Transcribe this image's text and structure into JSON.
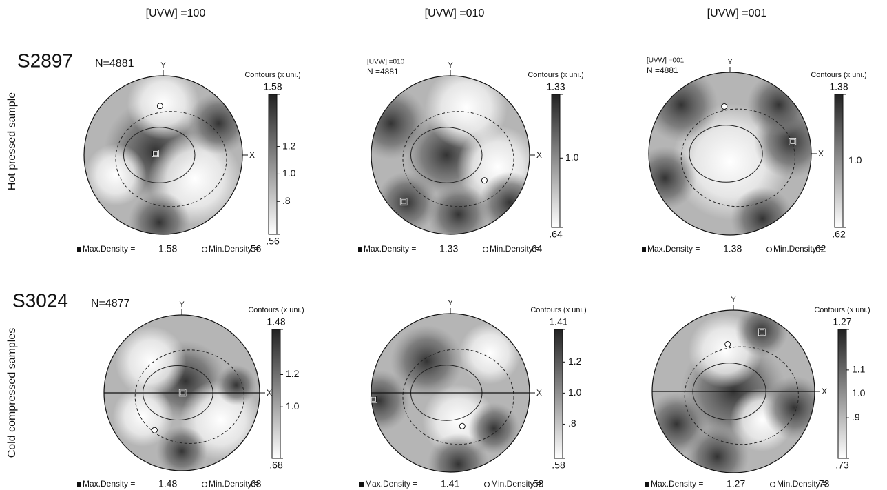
{
  "columns": [
    "[UVW] =100",
    "[UVW] =010",
    "[UVW] =001"
  ],
  "rows": [
    {
      "side_label": "Hot pressed sample",
      "sample": "S2897",
      "n_label": "N=4881",
      "panels": [
        {
          "axis_y": "Y",
          "axis_x": "X",
          "contour_title": "Contours (x uni.)",
          "clim": [
            0.56,
            1.58
          ],
          "ticks": [
            {
              "value": 1.58,
              "label": "1.58"
            },
            1.2,
            {
              "value": 1,
              "label": "1.0"
            },
            {
              "value": 0.8,
              "label": ".8"
            },
            {
              "value": 0.56,
              "label": ".56"
            }
          ],
          "max_label": "Max.Density =",
          "max_density": 1.58,
          "min_label": "Min.Density =",
          "min_density": {
            "value": 0.56,
            "label": ".56"
          }
        },
        {
          "inset": [
            "[UVW] =010",
            "N =4881"
          ],
          "axis_y": "Y",
          "axis_x": "X",
          "contour_title": "Contours (x uni.)",
          "clim": [
            0.64,
            1.33
          ],
          "ticks": [
            {
              "value": 1.33,
              "label": "1.33"
            },
            {
              "value": 1,
              "label": "1.0"
            },
            {
              "value": 0.64,
              "label": ".64"
            }
          ],
          "max_label": "Max.Density =",
          "max_density": 1.33,
          "min_label": "Min.Density =",
          "min_density": {
            "value": 0.64,
            "label": ".64"
          }
        },
        {
          "inset": [
            "[UVW] =001",
            "N =4881"
          ],
          "axis_y": "Y",
          "axis_x": "X",
          "contour_title": "Contours (x uni.)",
          "clim": [
            0.62,
            1.38
          ],
          "ticks": [
            {
              "value": 1.38,
              "label": "1.38"
            },
            {
              "value": 1,
              "label": "1.0"
            },
            {
              "value": 0.62,
              "label": ".62"
            }
          ],
          "max_label": "Max.Density =",
          "max_density": 1.38,
          "min_label": "Min.Density =",
          "min_density": {
            "value": 0.62,
            "label": ".62"
          }
        }
      ]
    },
    {
      "side_label": "Cold compressed samples",
      "sample": "S3024",
      "n_label": "N=4877",
      "panels": [
        {
          "axis_y": "Y",
          "axis_x": "X",
          "contour_title": "Contours (x uni.)",
          "clim": [
            0.68,
            1.48
          ],
          "ticks": [
            {
              "value": 1.48,
              "label": "1.48"
            },
            1.2,
            {
              "value": 1,
              "label": "1.0"
            },
            {
              "value": 0.68,
              "label": ".68"
            }
          ],
          "max_label": "Max.Density =",
          "max_density": 1.48,
          "min_label": "Min.Density =",
          "min_density": {
            "value": 0.68,
            "label": ".68"
          }
        },
        {
          "axis_y": "Y",
          "axis_x": "X",
          "contour_title": "Contours (x uni.)",
          "clim": [
            0.58,
            1.41
          ],
          "ticks": [
            {
              "value": 1.41,
              "label": "1.41"
            },
            1.2,
            {
              "value": 1,
              "label": "1.0"
            },
            {
              "value": 0.8,
              "label": ".8"
            },
            {
              "value": 0.58,
              "label": ".58"
            }
          ],
          "max_label": "Max.Density =",
          "max_density": 1.41,
          "min_label": "Min.Density =",
          "min_density": {
            "value": 0.58,
            "label": ".58"
          }
        },
        {
          "axis_y": "Y",
          "axis_x": "X",
          "contour_title": "Contours (x uni.)",
          "clim": [
            0.73,
            1.27
          ],
          "ticks": [
            {
              "value": 1.27,
              "label": "1.27"
            },
            1.1,
            {
              "value": 1,
              "label": "1.0"
            },
            {
              "value": 0.9,
              "label": ".9"
            },
            {
              "value": 0.73,
              "label": ".73"
            }
          ],
          "max_label": "Max.Density =",
          "max_density": 1.27,
          "min_label": "Min.Density =",
          "min_density": {
            "value": 0.73,
            "label": ".73"
          }
        }
      ]
    }
  ]
}
